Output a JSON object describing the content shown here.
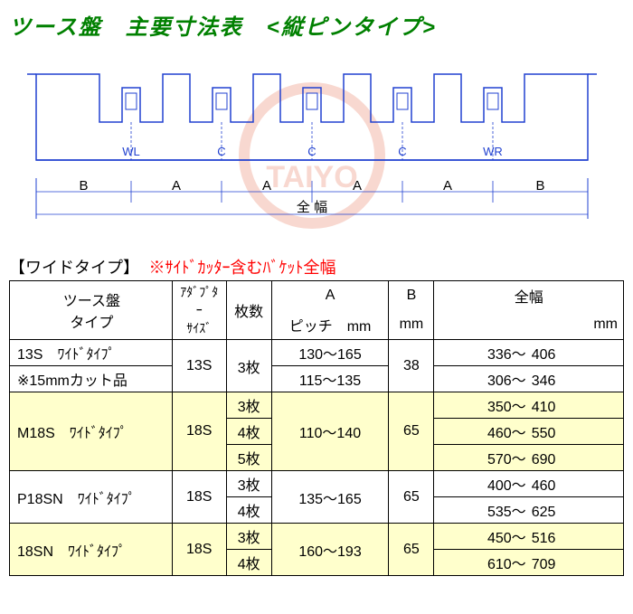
{
  "title": "ツース盤　主要寸法表　<縦ピンタイプ>",
  "diagram": {
    "top_labels": [
      "WL",
      "C",
      "C",
      "C",
      "WR"
    ],
    "bottom_labels": [
      "B",
      "A",
      "A",
      "A",
      "A",
      "B"
    ],
    "span_label": "全 幅",
    "line_color": "#2040d0",
    "watermark_text": "TAIYO",
    "watermark_color": "#f8d8d0"
  },
  "section": {
    "label": "【ワイドタイプ】",
    "note": "※ｻｲﾄﾞｶｯﾀｰ含むﾊﾞｹｯﾄ全幅"
  },
  "table": {
    "headers": {
      "type": "ツース盤\nタイプ",
      "adapter": "ｱﾀﾞﾌﾟﾀｰ\nｻｲｽﾞ",
      "count": "枚数",
      "pitch_a": "A",
      "pitch_unit": "ピッチ　mm",
      "b": "B",
      "b_unit": "mm",
      "width": "全幅",
      "width_unit": "mm"
    },
    "rows": [
      {
        "hl": false,
        "type": "13S　ﾜｲﾄﾞﾀｲﾌﾟ",
        "adapter": "13S",
        "adapter_rs": 2,
        "count": "3枚",
        "count_rs": 2,
        "pitch": "130～165",
        "b": "38",
        "b_rs": 2,
        "w1": "336～",
        "w2": "406"
      },
      {
        "hl": false,
        "type": "※15mmカット品",
        "pitch": "115～135",
        "w1": "306～",
        "w2": "346"
      },
      {
        "hl": true,
        "type": "M18S　ﾜｲﾄﾞﾀｲﾌﾟ",
        "type_rs": 3,
        "adapter": "18S",
        "adapter_rs": 3,
        "count": "3枚",
        "pitch": "110～140",
        "pitch_rs": 3,
        "b": "65",
        "b_rs": 3,
        "w1": "350～",
        "w2": "410"
      },
      {
        "hl": true,
        "count": "4枚",
        "w1": "460～",
        "w2": "550"
      },
      {
        "hl": true,
        "count": "5枚",
        "w1": "570～",
        "w2": "690"
      },
      {
        "hl": false,
        "type": "P18SN　ﾜｲﾄﾞﾀｲﾌﾟ",
        "type_rs": 2,
        "adapter": "18S",
        "adapter_rs": 2,
        "count": "3枚",
        "pitch": "135～165",
        "pitch_rs": 2,
        "b": "65",
        "b_rs": 2,
        "w1": "400～",
        "w2": "460"
      },
      {
        "hl": false,
        "count": "4枚",
        "w1": "535～",
        "w2": "625"
      },
      {
        "hl": true,
        "type": "18SN　ﾜｲﾄﾞﾀｲﾌﾟ",
        "type_rs": 2,
        "adapter": "18S",
        "adapter_rs": 2,
        "count": "3枚",
        "pitch": "160～193",
        "pitch_rs": 2,
        "b": "65",
        "b_rs": 2,
        "w1": "450～",
        "w2": "516"
      },
      {
        "hl": true,
        "count": "4枚",
        "w1": "610～",
        "w2": "709"
      }
    ]
  }
}
